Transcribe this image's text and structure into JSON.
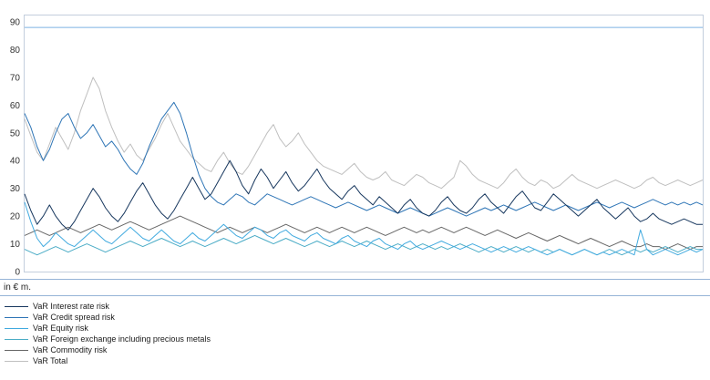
{
  "units_label": "in € m.",
  "chart_data": {
    "type": "line",
    "title": "",
    "xlabel": "",
    "ylabel": "",
    "ylim": [
      0,
      90
    ],
    "yticks": [
      0,
      10,
      20,
      30,
      40,
      50,
      60,
      70,
      80,
      90
    ],
    "grid": false,
    "legend_position": "bottom-left",
    "frame_color": "#C3CEDD",
    "tick_color": "#333333",
    "limit_line": {
      "value": 88,
      "color": "#7EB2E4"
    },
    "series": [
      {
        "name": "VaR Interest rate risk",
        "color": "#17375E",
        "values": [
          28,
          22,
          17,
          20,
          24,
          20,
          17,
          15,
          18,
          22,
          26,
          30,
          27,
          23,
          20,
          18,
          21,
          25,
          29,
          32,
          28,
          24,
          21,
          19,
          22,
          26,
          30,
          34,
          30,
          26,
          28,
          32,
          36,
          40,
          36,
          31,
          28,
          33,
          37,
          34,
          30,
          33,
          36,
          32,
          29,
          31,
          34,
          37,
          33,
          30,
          28,
          26,
          29,
          31,
          28,
          26,
          24,
          27,
          25,
          23,
          21,
          24,
          26,
          23,
          21,
          20,
          22,
          25,
          27,
          24,
          22,
          21,
          23,
          26,
          28,
          25,
          23,
          21,
          24,
          27,
          29,
          26,
          23,
          22,
          25,
          28,
          26,
          24,
          22,
          20,
          22,
          24,
          26,
          23,
          21,
          19,
          21,
          23,
          20,
          18,
          19,
          21,
          19,
          18,
          17,
          18,
          19,
          18,
          17,
          17
        ]
      },
      {
        "name": "VaR Credit spread risk",
        "color": "#2E75B6",
        "values": [
          57,
          52,
          45,
          40,
          44,
          50,
          55,
          57,
          52,
          48,
          50,
          53,
          49,
          45,
          47,
          44,
          40,
          37,
          35,
          39,
          45,
          50,
          55,
          58,
          61,
          57,
          50,
          42,
          35,
          30,
          27,
          25,
          24,
          26,
          28,
          27,
          25,
          24,
          26,
          28,
          27,
          26,
          25,
          24,
          25,
          26,
          27,
          26,
          25,
          24,
          23,
          24,
          25,
          24,
          23,
          22,
          23,
          24,
          23,
          22,
          21,
          22,
          23,
          22,
          21,
          20,
          21,
          22,
          23,
          22,
          21,
          20,
          21,
          22,
          23,
          22,
          23,
          24,
          23,
          22,
          23,
          24,
          25,
          24,
          23,
          22,
          23,
          24,
          23,
          22,
          23,
          24,
          25,
          24,
          23,
          24,
          25,
          24,
          23,
          24,
          25,
          26,
          25,
          24,
          25,
          24,
          25,
          24,
          25,
          24
        ]
      },
      {
        "name": "VaR Equity risk",
        "color": "#41AADF",
        "values": [
          25,
          18,
          12,
          9,
          11,
          14,
          12,
          10,
          9,
          11,
          13,
          15,
          13,
          11,
          10,
          12,
          14,
          16,
          14,
          12,
          11,
          13,
          15,
          13,
          11,
          10,
          12,
          14,
          12,
          11,
          13,
          15,
          17,
          15,
          13,
          12,
          14,
          16,
          15,
          13,
          12,
          14,
          15,
          13,
          12,
          11,
          13,
          14,
          12,
          11,
          10,
          12,
          13,
          11,
          10,
          9,
          11,
          12,
          10,
          9,
          8,
          10,
          11,
          9,
          8,
          9,
          10,
          11,
          10,
          9,
          8,
          9,
          10,
          9,
          8,
          7,
          8,
          9,
          8,
          7,
          8,
          9,
          8,
          7,
          6,
          7,
          8,
          7,
          6,
          7,
          8,
          7,
          6,
          7,
          6,
          7,
          8,
          7,
          6,
          15,
          8,
          6,
          7,
          8,
          7,
          6,
          7,
          8,
          7,
          8
        ]
      },
      {
        "name": "VaR Foreign exchange including precious metals",
        "color": "#4BACC6",
        "values": [
          8,
          7,
          6,
          7,
          8,
          9,
          8,
          7,
          8,
          9,
          10,
          9,
          8,
          7,
          8,
          9,
          10,
          11,
          10,
          9,
          10,
          11,
          12,
          11,
          10,
          9,
          10,
          11,
          10,
          9,
          10,
          11,
          12,
          11,
          10,
          11,
          12,
          13,
          12,
          11,
          10,
          11,
          12,
          11,
          10,
          9,
          10,
          11,
          10,
          9,
          10,
          11,
          10,
          9,
          10,
          11,
          10,
          9,
          8,
          9,
          10,
          9,
          8,
          9,
          10,
          9,
          8,
          9,
          8,
          9,
          10,
          9,
          8,
          7,
          8,
          9,
          8,
          7,
          8,
          9,
          8,
          7,
          8,
          7,
          8,
          7,
          8,
          7,
          6,
          7,
          8,
          7,
          6,
          7,
          8,
          7,
          6,
          7,
          8,
          7,
          8,
          7,
          8,
          9,
          8,
          7,
          8,
          9,
          8,
          8
        ]
      },
      {
        "name": "VaR Commodity risk",
        "color": "#666666",
        "values": [
          13,
          14,
          15,
          14,
          13,
          14,
          15,
          16,
          15,
          14,
          15,
          16,
          17,
          16,
          15,
          16,
          17,
          18,
          17,
          16,
          15,
          16,
          17,
          18,
          19,
          20,
          19,
          18,
          17,
          16,
          15,
          14,
          15,
          16,
          15,
          14,
          15,
          16,
          15,
          14,
          15,
          16,
          17,
          16,
          15,
          14,
          15,
          16,
          15,
          14,
          15,
          16,
          15,
          14,
          15,
          16,
          15,
          14,
          13,
          14,
          15,
          16,
          15,
          14,
          15,
          14,
          15,
          16,
          15,
          14,
          15,
          16,
          15,
          14,
          13,
          14,
          15,
          14,
          13,
          12,
          13,
          14,
          13,
          12,
          11,
          12,
          13,
          12,
          11,
          10,
          11,
          12,
          11,
          10,
          9,
          10,
          11,
          10,
          9,
          9,
          10,
          9,
          9,
          8,
          9,
          10,
          9,
          8,
          9,
          9
        ]
      },
      {
        "name": "VaR Total",
        "color": "#BFBFBF",
        "values": [
          55,
          49,
          43,
          40,
          46,
          52,
          48,
          44,
          50,
          58,
          64,
          70,
          66,
          58,
          52,
          47,
          43,
          46,
          42,
          40,
          44,
          48,
          53,
          57,
          52,
          47,
          44,
          41,
          39,
          37,
          36,
          40,
          43,
          39,
          36,
          35,
          38,
          42,
          46,
          50,
          53,
          48,
          45,
          47,
          50,
          46,
          43,
          40,
          38,
          37,
          36,
          35,
          37,
          39,
          36,
          34,
          33,
          34,
          36,
          33,
          32,
          31,
          33,
          35,
          34,
          32,
          31,
          30,
          32,
          34,
          40,
          38,
          35,
          33,
          32,
          31,
          30,
          32,
          35,
          37,
          34,
          32,
          31,
          33,
          32,
          30,
          31,
          33,
          35,
          33,
          32,
          31,
          30,
          31,
          32,
          33,
          32,
          31,
          30,
          31,
          33,
          34,
          32,
          31,
          32,
          33,
          32,
          31,
          32,
          33
        ]
      }
    ]
  }
}
